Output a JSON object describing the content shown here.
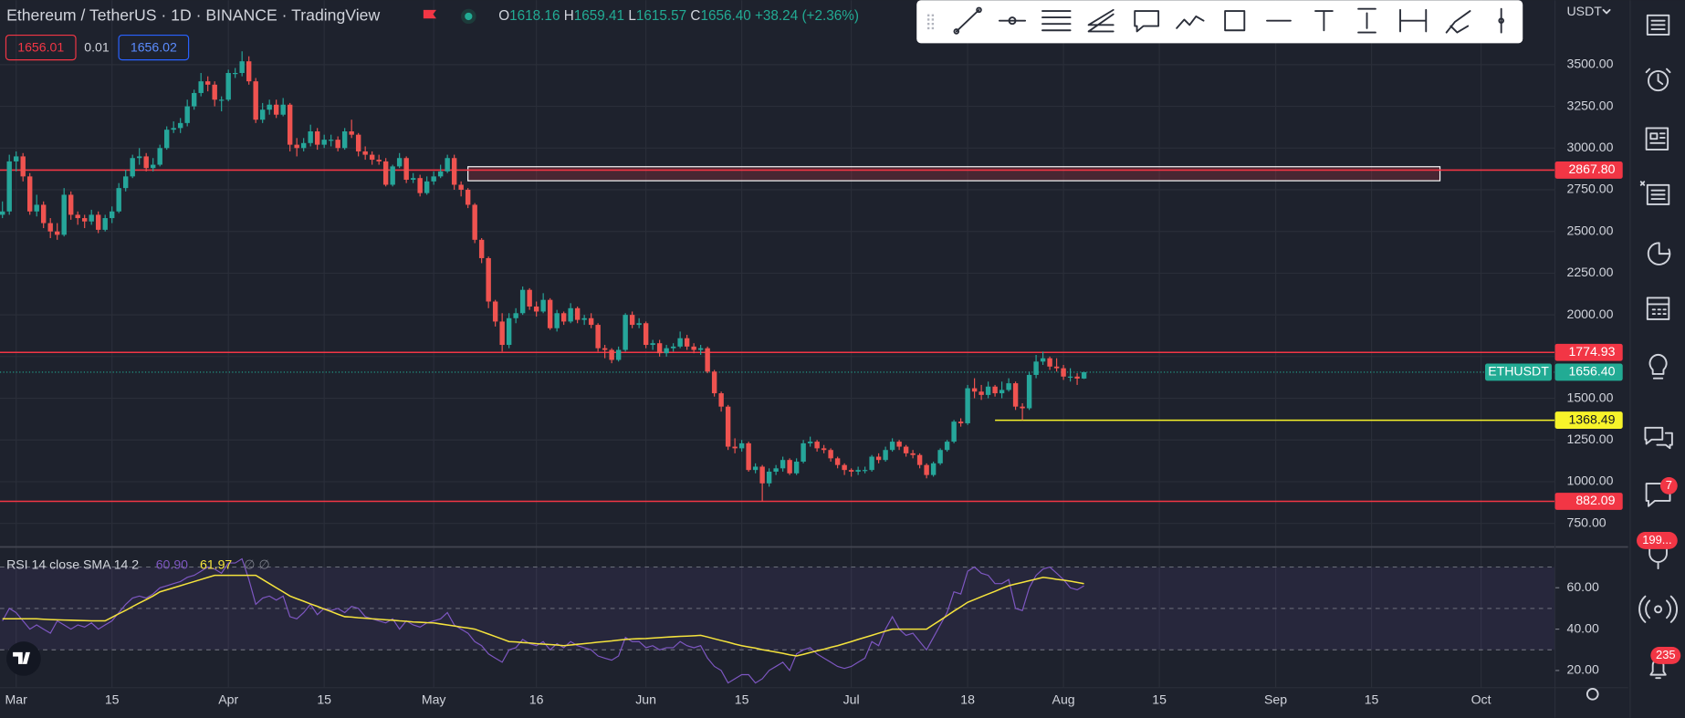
{
  "ui": {
    "title": "Ethereum / TetherUS · 1D · BINANCE · TradingView",
    "ohlc": [
      {
        "key": "O",
        "value": "1618.16"
      },
      {
        "key": "H",
        "value": "1659.41"
      },
      {
        "key": "L",
        "value": "1615.57"
      },
      {
        "key": "C",
        "value": "1656.40"
      }
    ],
    "change": "+38.24 (+2.36%)",
    "sell_price": "1656.01",
    "spread": "0.01",
    "buy_price": "1656.02",
    "currency": "USDT",
    "badges": [
      "7",
      "199...",
      "235"
    ]
  },
  "chart_data": {
    "type": "candlestick",
    "up_color": "#26a69a",
    "down_color": "#ef5350",
    "grid": true,
    "xlim": [
      -0.36,
      226.8
    ],
    "xticks": [
      {
        "value": 2,
        "label": "Mar"
      },
      {
        "value": 16,
        "label": "15"
      },
      {
        "value": 33,
        "label": "Apr"
      },
      {
        "value": 47,
        "label": "15"
      },
      {
        "value": 63,
        "label": "May"
      },
      {
        "value": 78,
        "label": "16"
      },
      {
        "value": 94,
        "label": "Jun"
      },
      {
        "value": 108,
        "label": "15"
      },
      {
        "value": 124,
        "label": "Jul"
      },
      {
        "value": 141,
        "label": "18"
      },
      {
        "value": 155,
        "label": "Aug"
      },
      {
        "value": 169,
        "label": "15"
      },
      {
        "value": 186,
        "label": "Sep"
      },
      {
        "value": 200,
        "label": "15"
      },
      {
        "value": 216,
        "label": "Oct"
      }
    ],
    "ylim": [
      615,
      3886
    ],
    "yticks": [
      {
        "value": 750,
        "label": "750.00"
      },
      {
        "value": 1000,
        "label": "1000.00"
      },
      {
        "value": 1250,
        "label": "1250.00"
      },
      {
        "value": 1500,
        "label": "1500.00"
      },
      {
        "value": 1750,
        "label": "1750.00"
      },
      {
        "value": 2000,
        "label": "2000.00"
      },
      {
        "value": 2250,
        "label": "2250.00"
      },
      {
        "value": 2500,
        "label": "2500.00"
      },
      {
        "value": 2750,
        "label": "2750.00"
      },
      {
        "value": 3000,
        "label": "3000.00"
      },
      {
        "value": 3250,
        "label": "3250.00"
      },
      {
        "value": 3500,
        "label": "3500.00"
      }
    ],
    "open": [
      2600,
      2620,
      2920,
      2950,
      2830,
      2620,
      2660,
      2550,
      2500,
      2480,
      2720,
      2600,
      2580,
      2560,
      2600,
      2510,
      2580,
      2620,
      2760,
      2830,
      2940,
      2950,
      2880,
      2900,
      3000,
      3110,
      3120,
      3150,
      3250,
      3330,
      3400,
      3380,
      3290,
      3290,
      3450,
      3450,
      3520,
      3400,
      3170,
      3230,
      3260,
      3200,
      3260,
      3020,
      3000,
      3030,
      3100,
      3020,
      3050,
      3050,
      3000,
      3100,
      3080,
      2980,
      2960,
      2930,
      2920,
      2780,
      2890,
      2940,
      2810,
      2820,
      2730,
      2800,
      2830,
      2860,
      2940,
      2780,
      2750,
      2660,
      2450,
      2340,
      2080,
      1960,
      1820,
      1980,
      2010,
      2150,
      2050,
      2020,
      2090,
      1920,
      2010,
      1960,
      2040,
      1970,
      1980,
      1940,
      1800,
      1790,
      1730,
      1790,
      2000,
      1940,
      1950,
      1820,
      1830,
      1770,
      1800,
      1810,
      1860,
      1810,
      1790,
      1800,
      1660,
      1530,
      1450,
      1210,
      1200,
      1230,
      1070,
      1090,
      990,
      1060,
      1080,
      1130,
      1050,
      1120,
      1230,
      1240,
      1200,
      1190,
      1140,
      1100,
      1070,
      1060,
      1070,
      1070,
      1150,
      1130,
      1190,
      1240,
      1210,
      1170,
      1160,
      1100,
      1040,
      1110,
      1190,
      1240,
      1360,
      1350,
      1560,
      1540,
      1520,
      1570,
      1530,
      1550,
      1590,
      1450,
      1440,
      1640,
      1720,
      1740,
      1690,
      1680,
      1630,
      1630,
      1618.16
    ],
    "high": [
      2680,
      2960,
      2980,
      2970,
      2850,
      2720,
      2680,
      2580,
      2550,
      2760,
      2740,
      2620,
      2600,
      2630,
      2620,
      2600,
      2650,
      2790,
      2870,
      2960,
      3000,
      2970,
      2940,
      3020,
      3130,
      3160,
      3180,
      3290,
      3350,
      3450,
      3430,
      3400,
      3310,
      3470,
      3480,
      3580,
      3550,
      3420,
      3270,
      3290,
      3290,
      3300,
      3270,
      3060,
      3060,
      3140,
      3120,
      3080,
      3080,
      3070,
      3120,
      3170,
      3090,
      3010,
      2980,
      2960,
      2940,
      2900,
      2970,
      2950,
      2850,
      2840,
      2830,
      2860,
      2900,
      2960,
      2960,
      2800,
      2760,
      2670,
      2460,
      2350,
      2090,
      2010,
      2010,
      2040,
      2170,
      2160,
      2080,
      2130,
      2100,
      2030,
      2020,
      2070,
      2050,
      2000,
      2010,
      1950,
      1820,
      1800,
      1810,
      2010,
      2020,
      1980,
      1960,
      1850,
      1850,
      1820,
      1830,
      1900,
      1880,
      1830,
      1820,
      1810,
      1670,
      1540,
      1460,
      1260,
      1250,
      1240,
      1110,
      1100,
      1080,
      1100,
      1150,
      1140,
      1140,
      1250,
      1270,
      1250,
      1220,
      1200,
      1150,
      1110,
      1080,
      1090,
      1090,
      1160,
      1170,
      1210,
      1260,
      1250,
      1220,
      1190,
      1170,
      1110,
      1120,
      1200,
      1250,
      1370,
      1380,
      1580,
      1620,
      1580,
      1600,
      1580,
      1600,
      1620,
      1600,
      1470,
      1660,
      1760,
      1780,
      1750,
      1740,
      1700,
      1680,
      1650,
      1659.41
    ],
    "low": [
      2580,
      2600,
      2860,
      2800,
      2600,
      2590,
      2520,
      2460,
      2450,
      2470,
      2570,
      2540,
      2520,
      2540,
      2490,
      2500,
      2550,
      2610,
      2740,
      2820,
      2900,
      2860,
      2860,
      2890,
      2990,
      3090,
      3090,
      3130,
      3230,
      3310,
      3340,
      3250,
      3220,
      3280,
      3420,
      3430,
      3380,
      3150,
      3150,
      3200,
      3180,
      3190,
      2980,
      2950,
      2980,
      3010,
      2990,
      3000,
      3010,
      2980,
      2990,
      3060,
      2950,
      2930,
      2900,
      2900,
      2770,
      2770,
      2880,
      2790,
      2790,
      2710,
      2720,
      2780,
      2820,
      2850,
      2750,
      2710,
      2640,
      2430,
      2310,
      2040,
      1930,
      1780,
      1800,
      1950,
      2000,
      2030,
      1990,
      2010,
      1910,
      1900,
      1940,
      1950,
      1950,
      1940,
      1920,
      1780,
      1740,
      1710,
      1720,
      1780,
      1920,
      1920,
      1800,
      1790,
      1750,
      1750,
      1780,
      1800,
      1790,
      1770,
      1760,
      1650,
      1510,
      1420,
      1190,
      1170,
      1180,
      1060,
      1050,
      882,
      970,
      1040,
      1060,
      1040,
      1040,
      1110,
      1210,
      1180,
      1170,
      1120,
      1080,
      1040,
      1030,
      1040,
      1050,
      1060,
      1110,
      1120,
      1180,
      1190,
      1150,
      1140,
      1080,
      1020,
      1030,
      1100,
      1180,
      1230,
      1330,
      1340,
      1500,
      1490,
      1500,
      1510,
      1500,
      1540,
      1430,
      1370,
      1430,
      1620,
      1700,
      1670,
      1660,
      1610,
      1600,
      1580,
      1615.57
    ],
    "close": [
      2620,
      2920,
      2950,
      2830,
      2620,
      2660,
      2550,
      2500,
      2480,
      2720,
      2600,
      2580,
      2560,
      2600,
      2510,
      2580,
      2620,
      2760,
      2830,
      2940,
      2950,
      2880,
      2900,
      3000,
      3110,
      3120,
      3150,
      3250,
      3330,
      3400,
      3380,
      3290,
      3290,
      3450,
      3450,
      3520,
      3400,
      3170,
      3230,
      3260,
      3200,
      3260,
      3020,
      3000,
      3030,
      3100,
      3020,
      3050,
      3050,
      3000,
      3100,
      3080,
      2980,
      2960,
      2930,
      2920,
      2780,
      2890,
      2940,
      2810,
      2820,
      2730,
      2800,
      2830,
      2860,
      2940,
      2780,
      2750,
      2660,
      2450,
      2340,
      2080,
      1960,
      1820,
      1980,
      2010,
      2150,
      2050,
      2020,
      2090,
      1920,
      2010,
      1960,
      2040,
      1970,
      1980,
      1940,
      1800,
      1790,
      1730,
      1790,
      2000,
      1940,
      1950,
      1820,
      1830,
      1770,
      1800,
      1810,
      1860,
      1810,
      1790,
      1800,
      1660,
      1530,
      1450,
      1210,
      1200,
      1230,
      1070,
      1090,
      990,
      1060,
      1080,
      1130,
      1050,
      1120,
      1230,
      1240,
      1200,
      1190,
      1140,
      1100,
      1070,
      1060,
      1070,
      1070,
      1150,
      1130,
      1190,
      1240,
      1210,
      1170,
      1160,
      1100,
      1040,
      1110,
      1190,
      1240,
      1360,
      1350,
      1560,
      1540,
      1520,
      1570,
      1530,
      1550,
      1590,
      1450,
      1440,
      1640,
      1720,
      1740,
      1690,
      1680,
      1630,
      1630,
      1618.16,
      1656.4
    ],
    "current_price": {
      "name": "ETHUSDT",
      "label": "1656.40",
      "color": "#22ab94"
    },
    "lines": [
      {
        "value": 2867.8,
        "label": "2867.80",
        "color": "#f23645",
        "start": -0.36
      },
      {
        "value": 1774.93,
        "label": "1774.93",
        "color": "#f23645",
        "start": -0.36
      },
      {
        "value": 1368.49,
        "label": "1368.49",
        "color": "#f7f32a",
        "start": 145
      },
      {
        "value": 882.09,
        "label": "882.09",
        "color": "#f23645",
        "start": -0.36
      }
    ],
    "rectangle": {
      "start": 68,
      "end": 210,
      "top": 2888,
      "bottom": 2804,
      "color": "#f23645"
    },
    "indicator": {
      "type": "line",
      "title": "RSI 14 close SMA 14 2",
      "extra": "∅ ∅",
      "ylim": [
        11.7,
        79.2
      ],
      "yticks": [
        {
          "value": 20,
          "label": "20.00"
        },
        {
          "value": 40,
          "label": "40.00"
        },
        {
          "value": 60,
          "label": "60.00"
        }
      ],
      "levels": [
        70,
        50,
        30
      ],
      "series": [
        {
          "color": "#7e57c2",
          "label": "60.90",
          "values": [
            44,
            50,
            48,
            44,
            40,
            42,
            40,
            38,
            44,
            42,
            40,
            42,
            41,
            43,
            40,
            42,
            44,
            48,
            52,
            55,
            56,
            55,
            57,
            60,
            61,
            62,
            63,
            65,
            66,
            68,
            70,
            69,
            67,
            72,
            72,
            74,
            64,
            52,
            55,
            56,
            54,
            56,
            46,
            45,
            48,
            52,
            47,
            50,
            49,
            50,
            48,
            51,
            50,
            46,
            45,
            44,
            43,
            45,
            40,
            44,
            42,
            41,
            43,
            44,
            45,
            48,
            42,
            40,
            38,
            34,
            32,
            28,
            26,
            24,
            30,
            31,
            35,
            33,
            32,
            34,
            30,
            33,
            31,
            34,
            32,
            31,
            30,
            27,
            26,
            25,
            27,
            36,
            34,
            34,
            31,
            32,
            30,
            31,
            31,
            34,
            32,
            31,
            32,
            26,
            22,
            20,
            14,
            16,
            18,
            18,
            14,
            16,
            20,
            22,
            24,
            20,
            28,
            30,
            31,
            28,
            26,
            24,
            22,
            21,
            22,
            24,
            26,
            34,
            32,
            40,
            46,
            40,
            37,
            38,
            34,
            30,
            36,
            42,
            48,
            58,
            57,
            68,
            70,
            67,
            66,
            62,
            62,
            64,
            50,
            49,
            60,
            66,
            69,
            70,
            67,
            64,
            60,
            59,
            60.9
          ]
        },
        {
          "color": "#f5e33c",
          "label": "61.97",
          "values": [
            45,
            45,
            45,
            45,
            45,
            45,
            44.8,
            44.6,
            44.5,
            44.4,
            44.3,
            44.2,
            44.1,
            44,
            44,
            44,
            45.7,
            47.4,
            49.1,
            50.9,
            52.6,
            54.3,
            56,
            58,
            59,
            60,
            61,
            62,
            63,
            64,
            65,
            66,
            66,
            66,
            66,
            66,
            66,
            66,
            64,
            62,
            60,
            58,
            56,
            54.7,
            53.5,
            52.2,
            51,
            49.7,
            48.5,
            47.2,
            46,
            45.8,
            45.5,
            45.3,
            45,
            44.8,
            44.5,
            44.3,
            44,
            43.8,
            43.5,
            43.3,
            43.1,
            43,
            42.5,
            42,
            41.5,
            41,
            40.5,
            40,
            38.8,
            37.6,
            36.4,
            35.2,
            34,
            33.8,
            33.5,
            33.3,
            33,
            32.8,
            32.5,
            32.3,
            32,
            32.3,
            32.7,
            33,
            33.3,
            33.7,
            34,
            34.3,
            34.7,
            35,
            35.2,
            35.4,
            35.5,
            35.7,
            35.9,
            36.1,
            36.3,
            36.5,
            36.6,
            36.8,
            37,
            36.2,
            35.3,
            34.5,
            33.7,
            32.8,
            32,
            31.4,
            30.8,
            30.1,
            29.5,
            28.9,
            28.3,
            27.6,
            27,
            27.8,
            28.7,
            29.5,
            30.3,
            31.2,
            32,
            33,
            34,
            35,
            36,
            37,
            38,
            39,
            40,
            40,
            40,
            40,
            40,
            40,
            42.2,
            44.3,
            46.5,
            48.7,
            50.8,
            53,
            54.3,
            55.7,
            57,
            58.3,
            59.7,
            61,
            61.8,
            62.6,
            63.4,
            64.2,
            65,
            64.6,
            64.1,
            63.7,
            63.2,
            62.6,
            61.97
          ]
        }
      ]
    }
  }
}
